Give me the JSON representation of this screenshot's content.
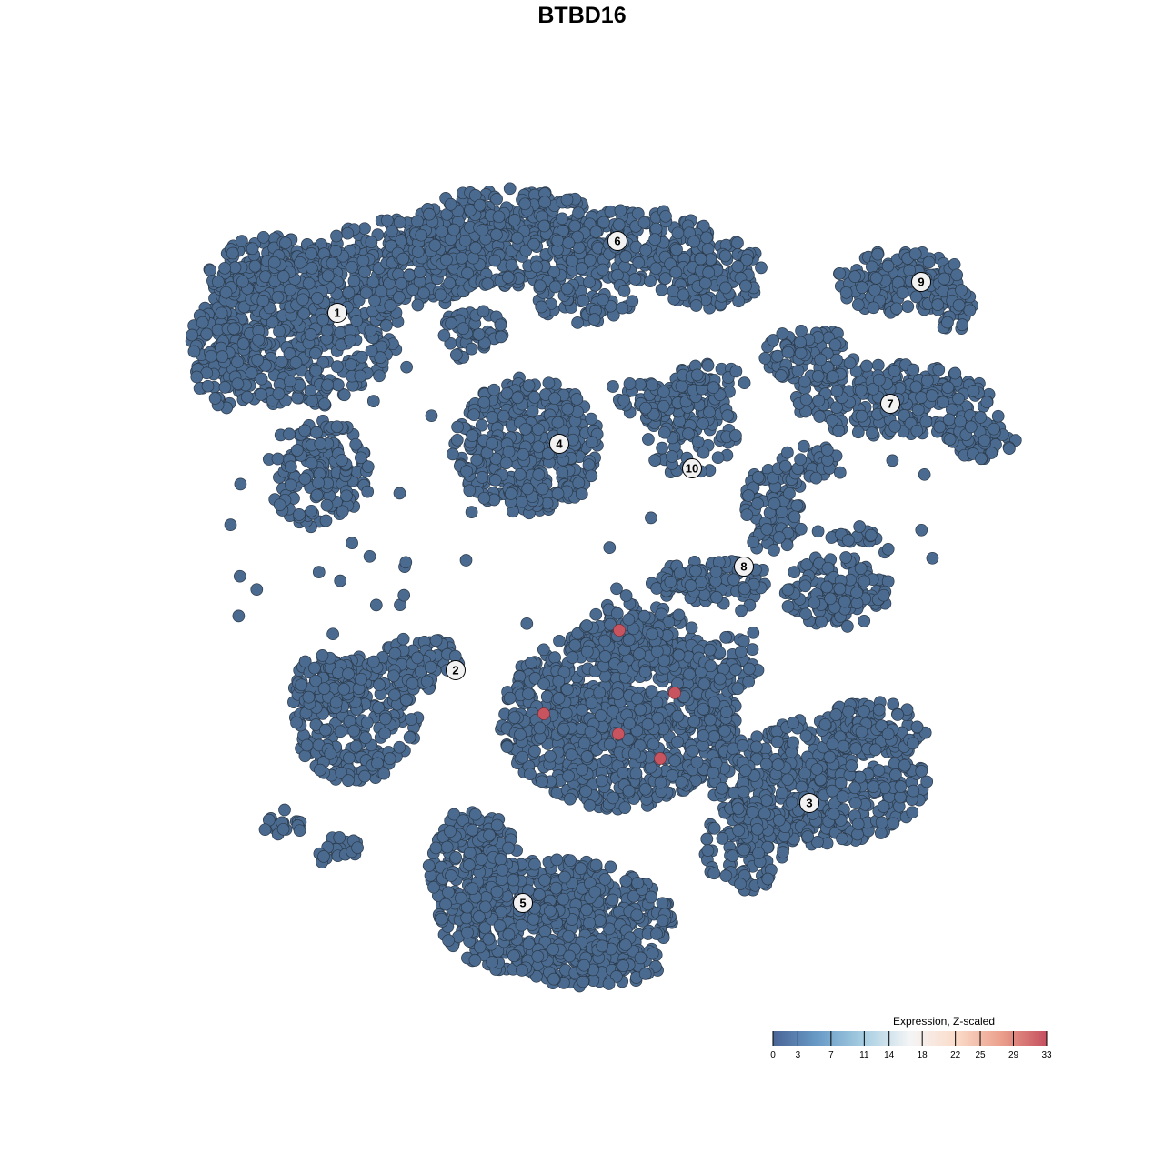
{
  "chart_data": {
    "type": "scatter",
    "title": "BTBD16",
    "xlabel": "",
    "ylabel": "",
    "grid": false,
    "cluster_labels": [
      "1",
      "2",
      "3",
      "4",
      "5",
      "6",
      "7",
      "8",
      "9",
      "10"
    ],
    "legend": {
      "title": "Expression, Z-scaled",
      "placement": "bottom-right",
      "range": [
        0,
        33
      ],
      "ticks": [
        "0",
        "3",
        "7",
        "11",
        "14",
        "18",
        "22",
        "25",
        "29",
        "33"
      ],
      "tick_values": [
        0,
        3,
        7,
        11,
        14,
        18,
        22,
        25,
        29,
        33
      ],
      "gradient_colors": [
        "#4a6596",
        "#6a9cc8",
        "#a8cfe2",
        "#f4f5f6",
        "#fbdccb",
        "#eba08c",
        "#c5505f"
      ]
    },
    "colors": {
      "low_expression": "#4b6a8f",
      "high_expression": "#c8545f",
      "point_stroke": "#2b3a4a",
      "label_fill": "#f2f2f2"
    }
  }
}
